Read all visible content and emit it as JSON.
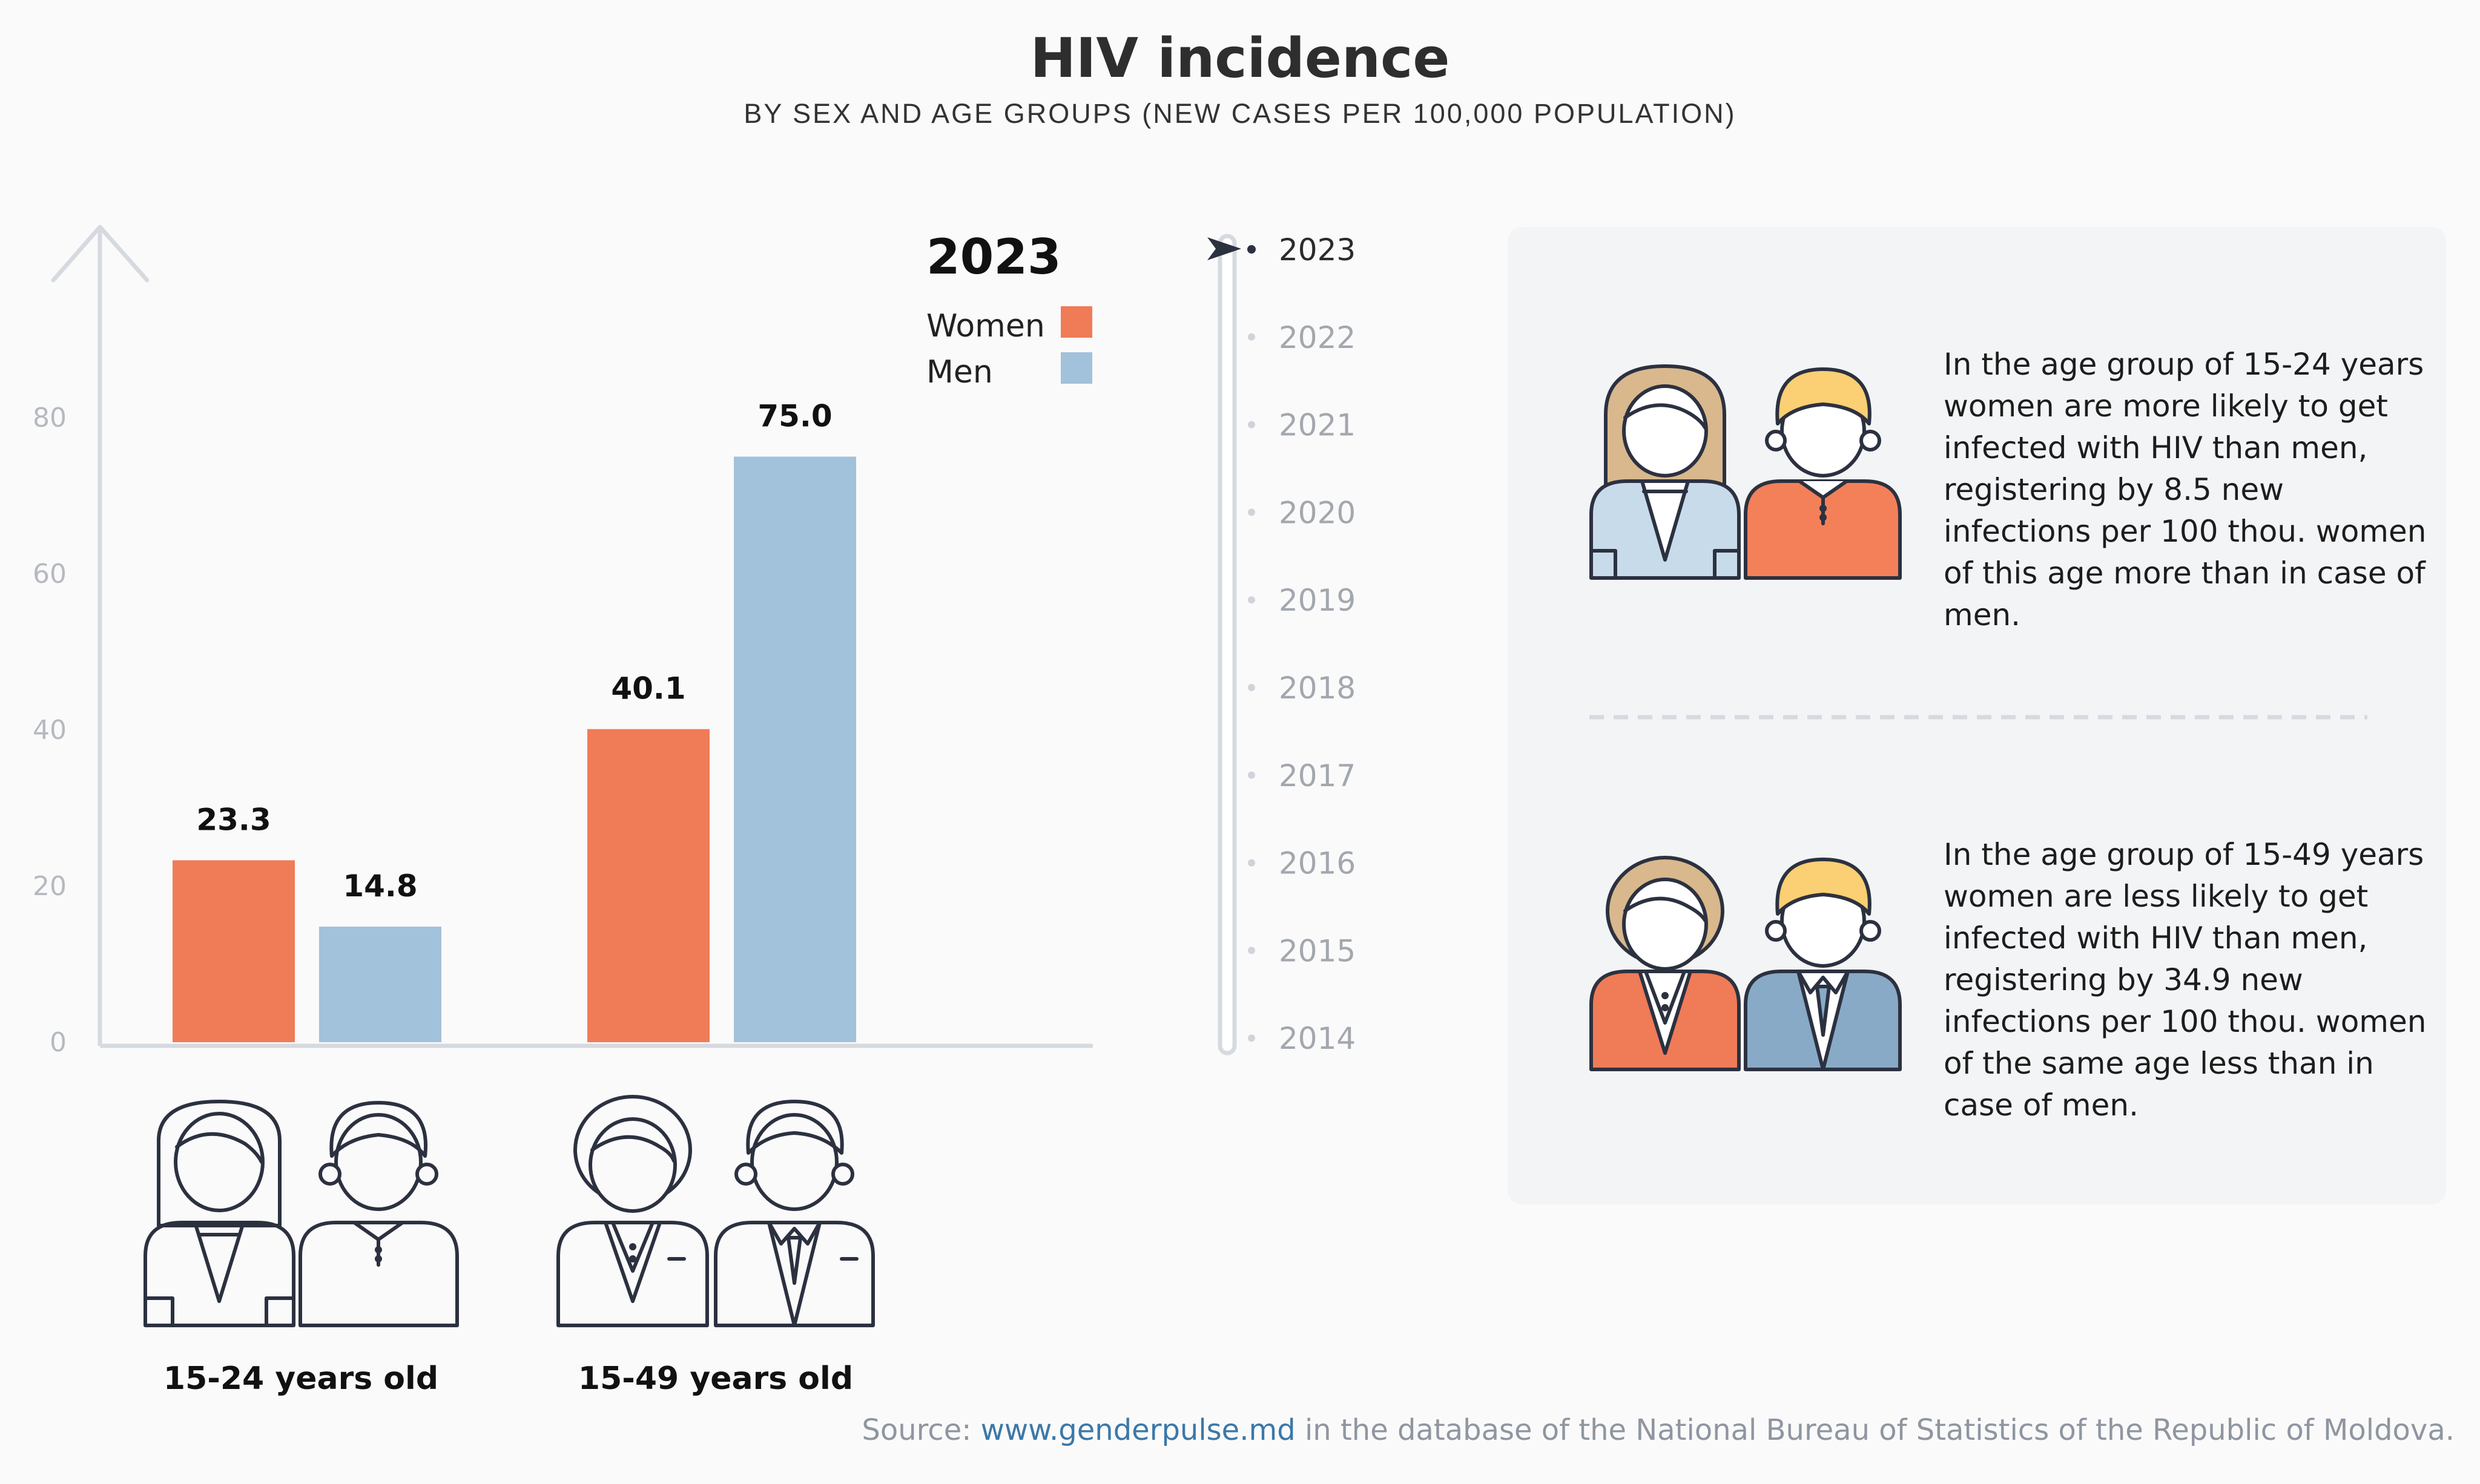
{
  "header": {
    "title": "HIV incidence",
    "subtitle": "BY SEX AND AGE GROUPS (NEW CASES PER 100,000 POPULATION)"
  },
  "chart_data": {
    "type": "bar",
    "selected_year": "2023",
    "categories": [
      "15-24 years old",
      "15-49 years old"
    ],
    "series": [
      {
        "name": "Women",
        "color": "#f07b57",
        "values": [
          23.3,
          40.1
        ],
        "labels": [
          "23.3",
          "40.1"
        ]
      },
      {
        "name": "Men",
        "color": "#a2c1db",
        "values": [
          14.8,
          75.0
        ],
        "labels": [
          "14.8",
          "75.0"
        ]
      }
    ],
    "yticks": [
      "0",
      "20",
      "40",
      "60",
      "80"
    ],
    "ylim": [
      0,
      80
    ],
    "grid": false,
    "legend_position": "top-right"
  },
  "timeline": {
    "years": [
      "2023",
      "2022",
      "2021",
      "2020",
      "2019",
      "2018",
      "2017",
      "2016",
      "2015",
      "2014"
    ],
    "active": "2023"
  },
  "notes": [
    {
      "text": "In the age group of 15-24 years women are more likely to get infected with HIV than men, registering by 8.5 new infections per 100 thou. women of this age more than in case of men."
    },
    {
      "text": "In the age group of 15-49 years women are less likely to get infected with HIV than men, registering by 34.9 new infections per 100 thou. women of the same age less than in case of men."
    }
  ],
  "source": {
    "prefix": "Source: ",
    "link": "www.genderpulse.md",
    "suffix": " in the database of the National Bureau of Statistics of the Republic of Moldova."
  },
  "colors": {
    "women": "#f07b57",
    "men": "#a2c1db",
    "axis": "#d6dae0",
    "outline": "#2c3140"
  },
  "icons": [
    "woman-icon",
    "man-icon",
    "woman-suit-icon",
    "man-suit-icon"
  ]
}
